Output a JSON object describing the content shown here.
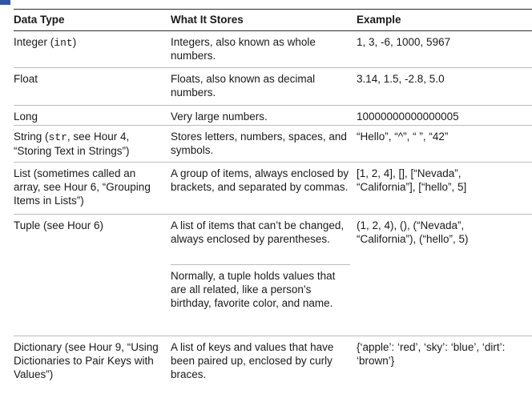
{
  "headers": {
    "data_type": "Data Type",
    "what_it_stores": "What It Stores",
    "example": "Example"
  },
  "rows": [
    {
      "data_type_prefix": "Integer (",
      "data_type_code": "int",
      "data_type_suffix": ")",
      "stores": "Integers, also known as whole numbers.",
      "example": "1, 3, -6, 1000, 5967"
    },
    {
      "data_type": "Float",
      "stores": "Floats, also known as decimal numbers.",
      "example": "3.14, 1.5, -2.8, 5.0"
    },
    {
      "data_type": "Long",
      "stores": "Very large numbers.",
      "example": "10000000000000005"
    },
    {
      "data_type_prefix": "String (",
      "data_type_code": "str",
      "data_type_suffix": ", see Hour 4, “Storing Text in Strings”)",
      "stores": "Stores letters, numbers, spaces, and symbols.",
      "example": "“Hello”, “^”, “ ”, “42”"
    },
    {
      "data_type": "List (sometimes called an array, see Hour 6, “Grouping Items in Lists”)",
      "stores": "A group of items, always enclosed by brackets, and separated by commas.",
      "example_line1": "[1, 2, 4], [], [“Nevada”,",
      "example_line2": "“California”], [“hello”, 5]"
    },
    {
      "data_type": "Tuple (see Hour 6)",
      "stores": "A list of items that can’t be changed, always enclosed by parentheses.",
      "stores_extra": "Normally, a tuple holds values that are all related, like a person’s birthday, favorite color, and name.",
      "example_line1": "(1, 2, 4), (), (“Nevada”,",
      "example_line2": "“California”), (“hello”, 5)"
    },
    {
      "data_type": "Dictionary (see Hour 9, “Using Dictionaries to Pair Keys with Values”)",
      "stores": "A list of keys and values that have been paired up, enclosed by curly braces.",
      "example_line1": "{‘apple’: ‘red’, ‘sky’: ‘blue’, ‘dirt’:",
      "example_line2": "‘brown’}"
    }
  ]
}
